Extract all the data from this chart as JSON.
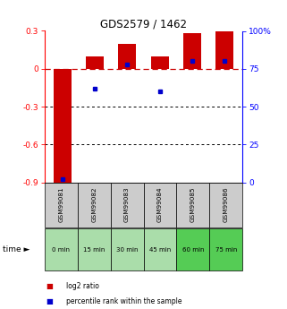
{
  "title": "GDS2579 / 1462",
  "samples": [
    "GSM99081",
    "GSM99082",
    "GSM99083",
    "GSM99084",
    "GSM99085",
    "GSM99086"
  ],
  "time_labels": [
    "0 min",
    "15 min",
    "30 min",
    "45 min",
    "60 min",
    "75 min"
  ],
  "time_bg_colors": [
    "#aaddaa",
    "#aaddaa",
    "#aaddaa",
    "#aaddaa",
    "#55cc55",
    "#55cc55"
  ],
  "log2_ratio": [
    -0.92,
    0.1,
    0.2,
    0.1,
    0.28,
    0.3
  ],
  "percentile_rank": [
    2,
    62,
    78,
    60,
    80,
    80
  ],
  "ylim_left": [
    -0.9,
    0.3
  ],
  "ylim_right": [
    0,
    100
  ],
  "yticks_left": [
    0.3,
    0.0,
    -0.3,
    -0.6,
    -0.9
  ],
  "yticks_right": [
    100,
    75,
    50,
    25,
    0
  ],
  "bar_color": "#cc0000",
  "dot_color": "#0000cc",
  "zero_line_color": "#cc0000",
  "background_color": "#ffffff",
  "sample_bg_color": "#cccccc",
  "legend_items": [
    "log2 ratio",
    "percentile rank within the sample"
  ]
}
